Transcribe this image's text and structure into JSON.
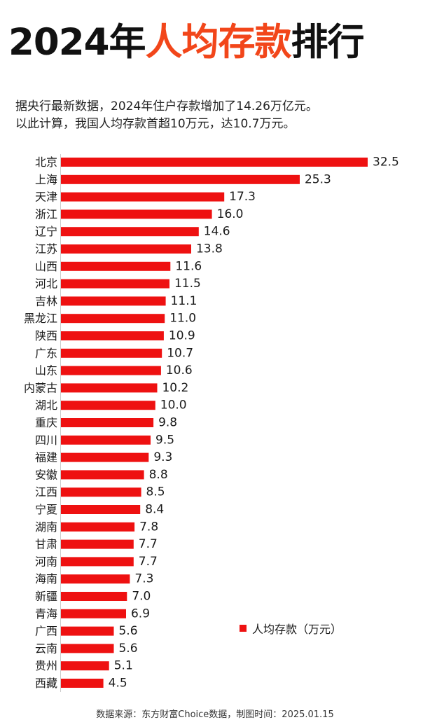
{
  "header": {
    "title_year": "2024年",
    "title_accent": "人均存款",
    "title_tail": "排行",
    "subtitle_line1": "据央行最新数据，2024年住户存款增加了14.26万亿元。",
    "subtitle_line2": "以此计算，我国人均存款首超10万元，达10.7万元。"
  },
  "colors": {
    "bar": "#ee1111",
    "title_accent": "#f2461a"
  },
  "chart_data": {
    "type": "bar",
    "orientation": "horizontal",
    "categories": [
      "北京",
      "上海",
      "天津",
      "浙江",
      "辽宁",
      "江苏",
      "山西",
      "河北",
      "吉林",
      "黑龙江",
      "陕西",
      "广东",
      "山东",
      "内蒙古",
      "湖北",
      "重庆",
      "四川",
      "福建",
      "安徽",
      "江西",
      "宁夏",
      "湖南",
      "甘肃",
      "河南",
      "海南",
      "新疆",
      "青海",
      "广西",
      "云南",
      "贵州",
      "西藏"
    ],
    "value_labels": [
      "32.5",
      "25.3",
      "17.3",
      "16.0",
      "14.6",
      "13.8",
      "11.6",
      "11.5",
      "11.1",
      "11.0",
      "10.9",
      "10.7",
      "10.6",
      "10.2",
      "10.0",
      "9.8",
      "9.5",
      "9.3",
      "8.8",
      "8.5",
      "8.4",
      "7.8",
      "7.7",
      "7.7",
      "7.3",
      "7.0",
      "6.9",
      "5.6",
      "5.6",
      "5.1",
      "4.5"
    ],
    "series": [
      {
        "name": "人均存款（万元）",
        "values": [
          32.5,
          25.3,
          17.3,
          16.0,
          14.6,
          13.8,
          11.6,
          11.5,
          11.1,
          11.0,
          10.9,
          10.7,
          10.6,
          10.2,
          10.0,
          9.8,
          9.5,
          9.3,
          8.8,
          8.5,
          8.4,
          7.8,
          7.7,
          7.7,
          7.3,
          7.0,
          6.9,
          5.6,
          5.6,
          5.1,
          4.5
        ]
      }
    ],
    "xlim": [
      0,
      32.5
    ],
    "grid": false,
    "legend_position": "bottom-right"
  },
  "legend": {
    "label": "人均存款（万元）"
  },
  "footer": {
    "source": "数据来源：东方财富Choice数据，制图时间：2025.01.15"
  }
}
